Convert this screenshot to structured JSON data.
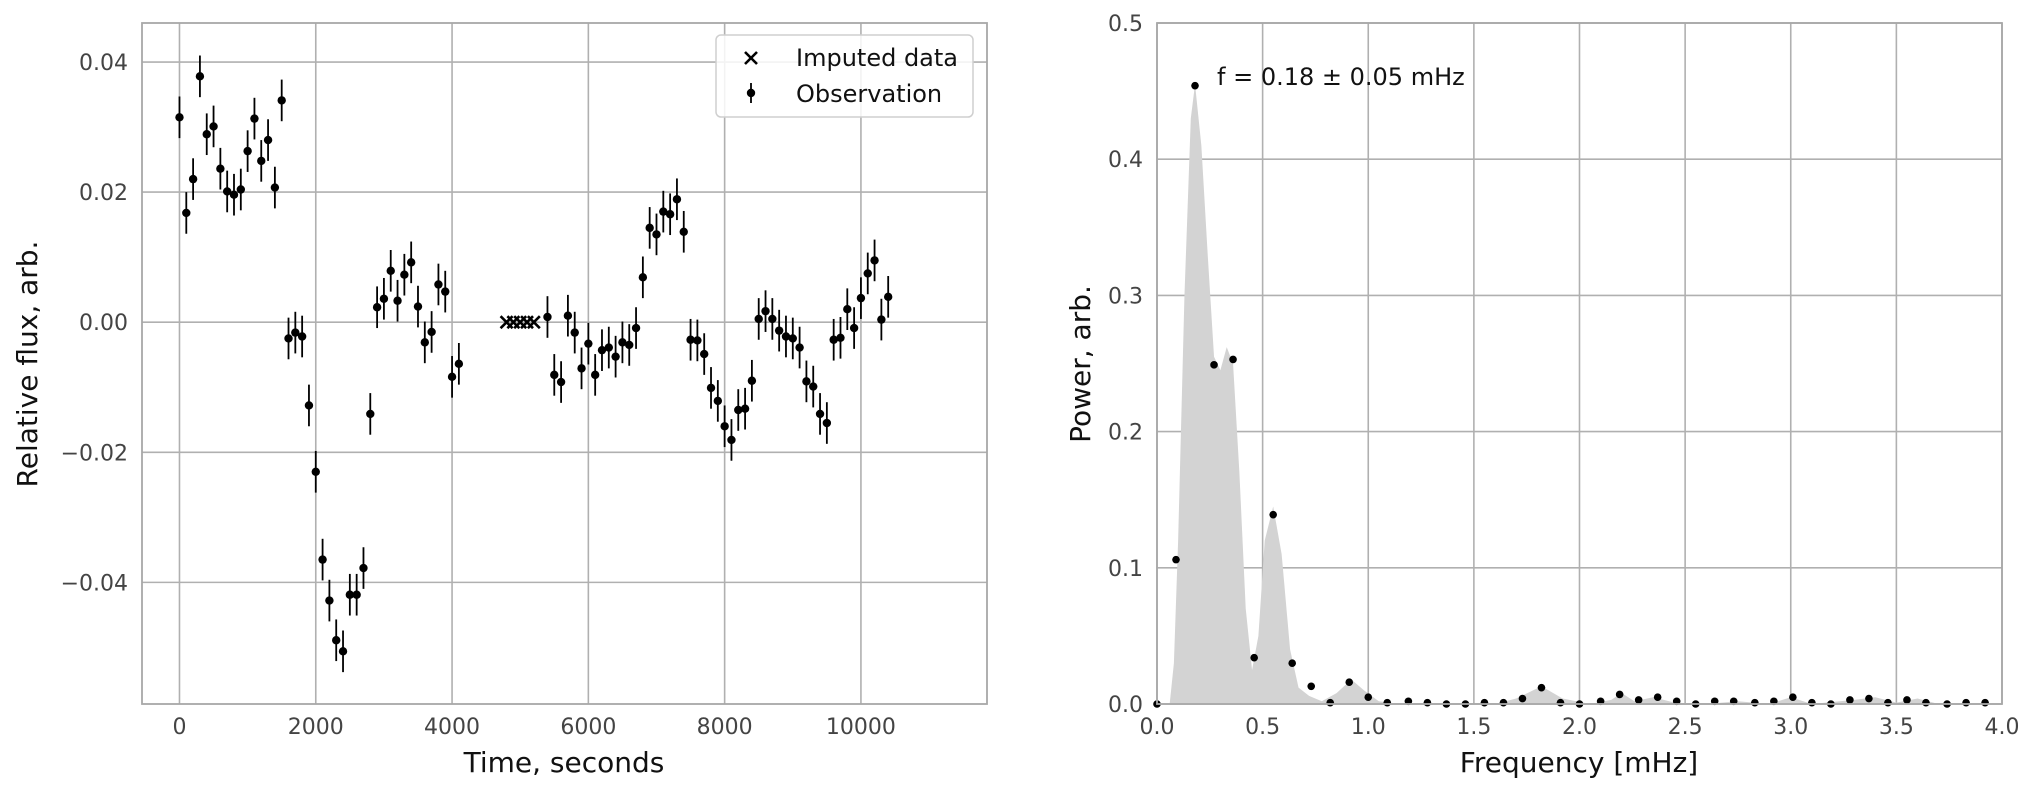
{
  "chart_data": [
    {
      "type": "scatter",
      "title": "",
      "xlabel": "Time, seconds",
      "ylabel": "Relative flux, arb.",
      "xlim": [
        -550,
        11850
      ],
      "ylim": [
        -0.0587,
        0.046
      ],
      "xticks": [
        0,
        2000,
        4000,
        6000,
        8000,
        10000
      ],
      "xtick_labels": [
        "0",
        "2000",
        "4000",
        "6000",
        "8000",
        "10000"
      ],
      "yticks": [
        -0.04,
        -0.02,
        0.0,
        0.02,
        0.04
      ],
      "ytick_labels": [
        "−0.04",
        "−0.02",
        "0.00",
        "0.02",
        "0.04"
      ],
      "grid": true,
      "legend_position": "top-right",
      "series": [
        {
          "name": "Imputed data",
          "marker": "x",
          "color": "#000000",
          "points": [
            [
              4800,
              0.0
            ],
            [
              4900,
              0.0
            ],
            [
              5000,
              0.0
            ],
            [
              5100,
              0.0
            ],
            [
              5200,
              0.0
            ]
          ]
        },
        {
          "name": "Observation",
          "marker": "errorbar-dot",
          "color": "#000000",
          "error": 0.0032,
          "points": [
            [
              0,
              0.0315
            ],
            [
              100,
              0.0168
            ],
            [
              200,
              0.022
            ],
            [
              300,
              0.0378
            ],
            [
              400,
              0.0289
            ],
            [
              500,
              0.0301
            ],
            [
              600,
              0.0236
            ],
            [
              700,
              0.0201
            ],
            [
              800,
              0.0196
            ],
            [
              900,
              0.0204
            ],
            [
              1000,
              0.0263
            ],
            [
              1100,
              0.0313
            ],
            [
              1200,
              0.0248
            ],
            [
              1300,
              0.028
            ],
            [
              1400,
              0.0207
            ],
            [
              1500,
              0.0341
            ],
            [
              1600,
              -0.0025
            ],
            [
              1700,
              -0.0016
            ],
            [
              1800,
              -0.0022
            ],
            [
              1900,
              -0.0128
            ],
            [
              2000,
              -0.023
            ],
            [
              2100,
              -0.0365
            ],
            [
              2200,
              -0.0428
            ],
            [
              2300,
              -0.0489
            ],
            [
              2400,
              -0.0506
            ],
            [
              2500,
              -0.0419
            ],
            [
              2600,
              -0.0419
            ],
            [
              2700,
              -0.0378
            ],
            [
              2800,
              -0.0141
            ],
            [
              2900,
              0.0023
            ],
            [
              3000,
              0.0036
            ],
            [
              3100,
              0.0079
            ],
            [
              3200,
              0.0033
            ],
            [
              3300,
              0.0073
            ],
            [
              3400,
              0.0092
            ],
            [
              3500,
              0.0024
            ],
            [
              3600,
              -0.0031
            ],
            [
              3700,
              -0.0015
            ],
            [
              3800,
              0.0058
            ],
            [
              3900,
              0.0047
            ],
            [
              4000,
              -0.0084
            ],
            [
              4100,
              -0.0064
            ],
            [
              5400,
              0.0008
            ],
            [
              5500,
              -0.0081
            ],
            [
              5600,
              -0.0092
            ],
            [
              5700,
              0.001
            ],
            [
              5800,
              -0.0016
            ],
            [
              5900,
              -0.0071
            ],
            [
              6000,
              -0.0033
            ],
            [
              6100,
              -0.0081
            ],
            [
              6200,
              -0.0043
            ],
            [
              6300,
              -0.0039
            ],
            [
              6400,
              -0.0053
            ],
            [
              6500,
              -0.0031
            ],
            [
              6600,
              -0.0035
            ],
            [
              6700,
              -0.0009
            ],
            [
              6800,
              0.0069
            ],
            [
              6900,
              0.0145
            ],
            [
              7000,
              0.0135
            ],
            [
              7100,
              0.017
            ],
            [
              7200,
              0.0166
            ],
            [
              7300,
              0.0189
            ],
            [
              7400,
              0.0139
            ],
            [
              7500,
              -0.0027
            ],
            [
              7600,
              -0.0028
            ],
            [
              7700,
              -0.0049
            ],
            [
              7800,
              -0.0101
            ],
            [
              7900,
              -0.0121
            ],
            [
              8000,
              -0.016
            ],
            [
              8100,
              -0.0181
            ],
            [
              8200,
              -0.0135
            ],
            [
              8300,
              -0.0133
            ],
            [
              8400,
              -0.009
            ],
            [
              8500,
              0.0005
            ],
            [
              8600,
              0.0017
            ],
            [
              8700,
              0.0005
            ],
            [
              8800,
              -0.0013
            ],
            [
              8900,
              -0.0022
            ],
            [
              9000,
              -0.0025
            ],
            [
              9100,
              -0.0039
            ],
            [
              9200,
              -0.0091
            ],
            [
              9300,
              -0.0099
            ],
            [
              9400,
              -0.0141
            ],
            [
              9500,
              -0.0155
            ],
            [
              9600,
              -0.0027
            ],
            [
              9700,
              -0.0024
            ],
            [
              9800,
              0.002
            ],
            [
              9900,
              -0.0009
            ],
            [
              10000,
              0.0037
            ],
            [
              10100,
              0.0075
            ],
            [
              10200,
              0.0095
            ],
            [
              10300,
              0.0004
            ],
            [
              10400,
              0.0039
            ]
          ]
        }
      ]
    },
    {
      "type": "area",
      "title": "",
      "xlabel": "Frequency [mHz]",
      "ylabel": "Power, arb.",
      "xlim": [
        0.0,
        4.0
      ],
      "ylim": [
        0.0,
        0.5
      ],
      "xticks": [
        0.0,
        0.5,
        1.0,
        1.5,
        2.0,
        2.5,
        3.0,
        3.5,
        4.0
      ],
      "xtick_labels": [
        "0.0",
        "0.5",
        "1.0",
        "1.5",
        "2.0",
        "2.5",
        "3.0",
        "3.5",
        "4.0"
      ],
      "yticks": [
        0.0,
        0.1,
        0.2,
        0.3,
        0.4,
        0.5
      ],
      "ytick_labels": [
        "0.0",
        "0.1",
        "0.2",
        "0.3",
        "0.4",
        "0.5"
      ],
      "grid": true,
      "annotation": "f = 0.18 ± 0.05 mHz",
      "fill_color": "#d3d3d3",
      "fill_curve": [
        [
          0.0,
          0.0
        ],
        [
          0.06,
          0.0
        ],
        [
          0.08,
          0.03
        ],
        [
          0.1,
          0.12
        ],
        [
          0.13,
          0.3
        ],
        [
          0.16,
          0.43
        ],
        [
          0.18,
          0.455
        ],
        [
          0.21,
          0.41
        ],
        [
          0.24,
          0.33
        ],
        [
          0.27,
          0.255
        ],
        [
          0.3,
          0.245
        ],
        [
          0.33,
          0.262
        ],
        [
          0.36,
          0.25
        ],
        [
          0.39,
          0.17
        ],
        [
          0.42,
          0.07
        ],
        [
          0.45,
          0.025
        ],
        [
          0.48,
          0.05
        ],
        [
          0.51,
          0.12
        ],
        [
          0.55,
          0.145
        ],
        [
          0.59,
          0.11
        ],
        [
          0.63,
          0.04
        ],
        [
          0.67,
          0.012
        ],
        [
          0.72,
          0.006
        ],
        [
          0.78,
          0.002
        ],
        [
          0.85,
          0.008
        ],
        [
          0.92,
          0.018
        ],
        [
          0.98,
          0.01
        ],
        [
          1.05,
          0.002
        ],
        [
          1.15,
          0.0
        ],
        [
          1.6,
          0.0
        ],
        [
          1.7,
          0.004
        ],
        [
          1.82,
          0.013
        ],
        [
          1.92,
          0.004
        ],
        [
          2.05,
          0.0
        ],
        [
          2.15,
          0.003
        ],
        [
          2.2,
          0.008
        ],
        [
          2.26,
          0.002
        ],
        [
          2.35,
          0.005
        ],
        [
          2.45,
          0.001
        ],
        [
          2.6,
          0.0
        ],
        [
          2.75,
          0.002
        ],
        [
          2.9,
          0.0
        ],
        [
          3.0,
          0.005
        ],
        [
          3.1,
          0.0
        ],
        [
          3.3,
          0.003
        ],
        [
          3.4,
          0.005
        ],
        [
          3.5,
          0.001
        ],
        [
          3.6,
          0.004
        ],
        [
          3.7,
          0.0
        ],
        [
          4.0,
          0.0
        ]
      ],
      "points": [
        [
          0.0,
          0.0
        ],
        [
          0.09,
          0.106
        ],
        [
          0.18,
          0.454
        ],
        [
          0.27,
          0.249
        ],
        [
          0.36,
          0.253
        ],
        [
          0.46,
          0.034
        ],
        [
          0.55,
          0.139
        ],
        [
          0.64,
          0.03
        ],
        [
          0.73,
          0.013
        ],
        [
          0.82,
          0.001
        ],
        [
          0.91,
          0.016
        ],
        [
          1.0,
          0.005
        ],
        [
          1.09,
          0.001
        ],
        [
          1.19,
          0.002
        ],
        [
          1.28,
          0.001
        ],
        [
          1.37,
          0.0
        ],
        [
          1.46,
          0.0
        ],
        [
          1.55,
          0.001
        ],
        [
          1.64,
          0.001
        ],
        [
          1.73,
          0.004
        ],
        [
          1.82,
          0.012
        ],
        [
          1.91,
          0.001
        ],
        [
          2.0,
          0.0
        ],
        [
          2.1,
          0.002
        ],
        [
          2.19,
          0.007
        ],
        [
          2.28,
          0.003
        ],
        [
          2.37,
          0.005
        ],
        [
          2.46,
          0.002
        ],
        [
          2.55,
          0.0
        ],
        [
          2.64,
          0.002
        ],
        [
          2.73,
          0.002
        ],
        [
          2.83,
          0.001
        ],
        [
          2.92,
          0.002
        ],
        [
          3.01,
          0.005
        ],
        [
          3.1,
          0.001
        ],
        [
          3.19,
          0.0
        ],
        [
          3.28,
          0.003
        ],
        [
          3.37,
          0.004
        ],
        [
          3.46,
          0.001
        ],
        [
          3.55,
          0.003
        ],
        [
          3.64,
          0.001
        ],
        [
          3.74,
          0.0
        ],
        [
          3.83,
          0.001
        ],
        [
          3.92,
          0.001
        ]
      ]
    }
  ]
}
